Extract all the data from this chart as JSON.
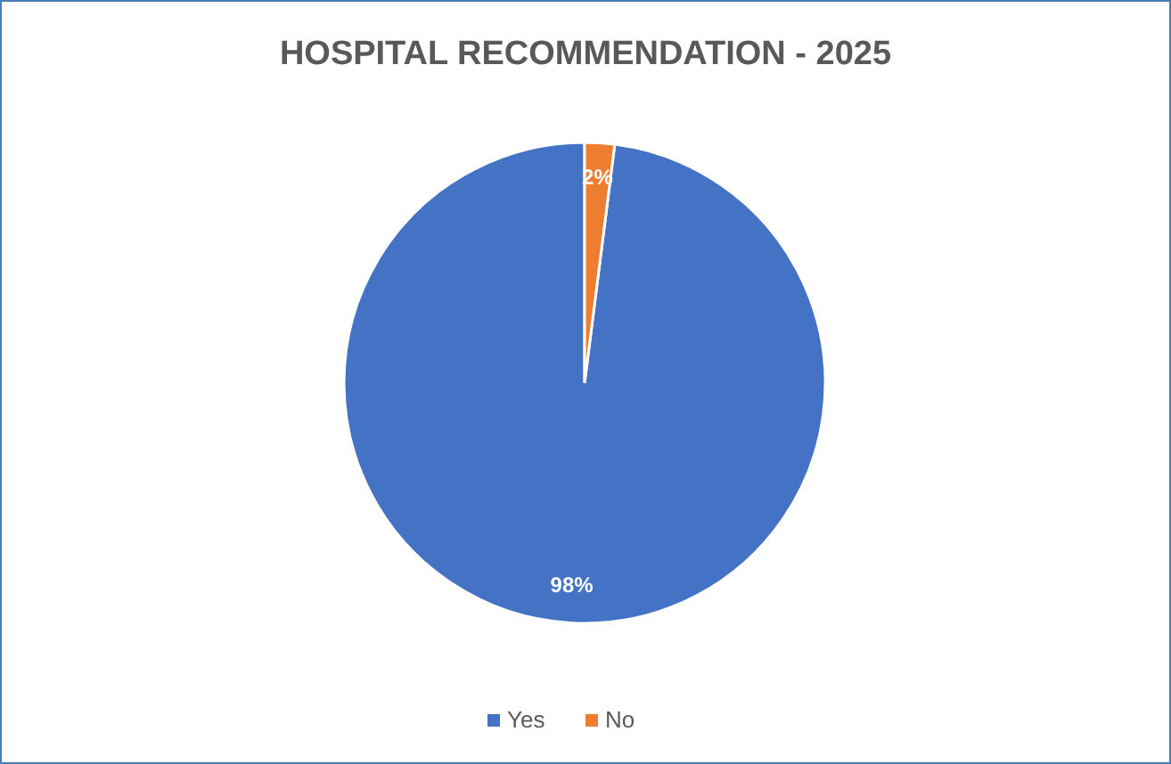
{
  "chart_data": {
    "type": "pie",
    "title": "HOSPITAL RECOMMENDATION - 2025",
    "categories": [
      "Yes",
      "No"
    ],
    "values": [
      98,
      2
    ],
    "value_labels": [
      "98%",
      "2%"
    ],
    "colors": [
      "#4472c4",
      "#ed7d31"
    ],
    "legend": "bottom"
  }
}
